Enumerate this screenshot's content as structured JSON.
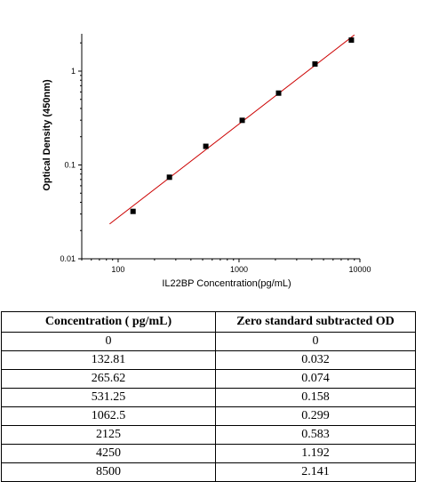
{
  "chart_data": {
    "type": "scatter",
    "xscale": "log",
    "yscale": "log",
    "xlabel": "IL22BP  Concentration(pg/mL)",
    "ylabel": "Optical Density (450nm)",
    "xlim": [
      50,
      10000
    ],
    "ylim": [
      0.01,
      2.5
    ],
    "x_ticks": [
      100,
      1000,
      10000
    ],
    "x_tick_labels": [
      "100",
      "1000",
      "10000"
    ],
    "y_ticks": [
      0.01,
      0.1,
      1
    ],
    "y_tick_labels": [
      "0.01",
      "0.1",
      "1"
    ],
    "series": [
      {
        "x": [
          132.81,
          265.62,
          531.25,
          1062.5,
          2125,
          4250,
          8500
        ],
        "y": [
          0.032,
          0.074,
          0.158,
          0.299,
          0.583,
          1.192,
          2.141
        ],
        "marker": "square",
        "color": "#000000"
      }
    ],
    "fit_line": {
      "color": "#cc0000",
      "x": [
        85,
        9000
      ],
      "y": [
        0.0235,
        2.43
      ]
    },
    "grid": false
  },
  "table": {
    "headers": [
      "Concentration ( pg/mL)",
      "Zero standard subtracted OD"
    ],
    "rows": [
      [
        "0",
        "0"
      ],
      [
        "132.81",
        "0.032"
      ],
      [
        "265.62",
        "0.074"
      ],
      [
        "531.25",
        "0.158"
      ],
      [
        "1062.5",
        "0.299"
      ],
      [
        "2125",
        "0.583"
      ],
      [
        "4250",
        "1.192"
      ],
      [
        "8500",
        "2.141"
      ]
    ]
  }
}
